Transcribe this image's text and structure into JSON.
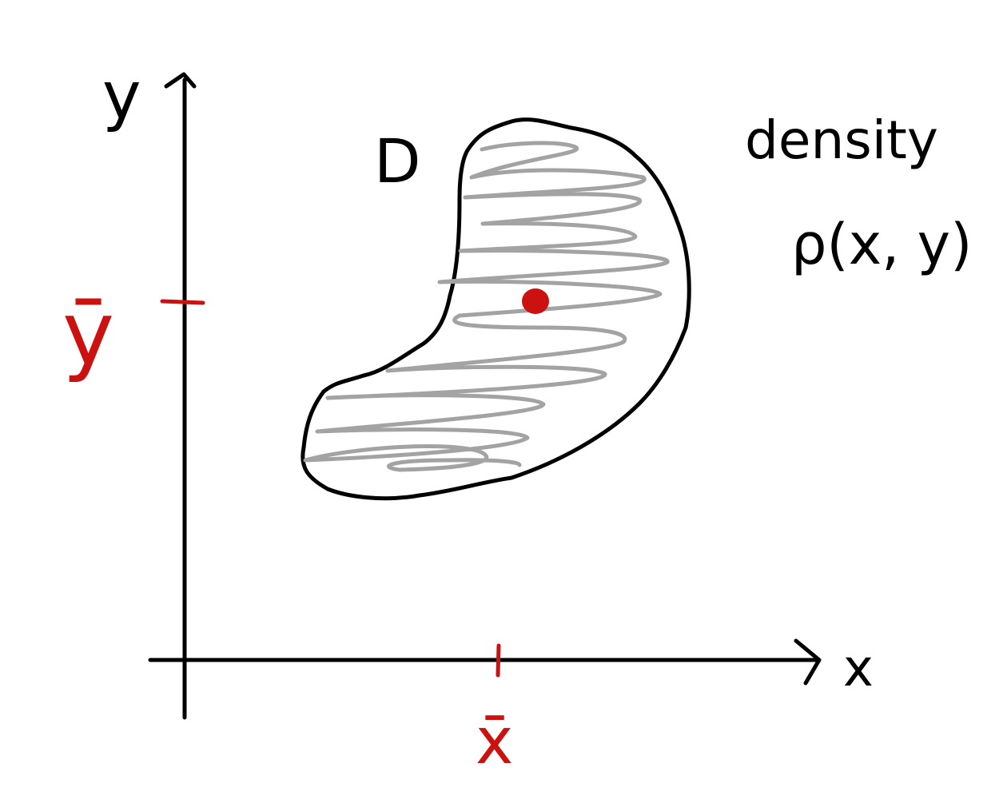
{
  "labels": {
    "y_axis": "y",
    "x_axis": "x",
    "region": "D",
    "density_word": "density",
    "density_func": "ρ(x, y)",
    "y_bar": "ȳ",
    "x_bar": "x̄"
  },
  "colors": {
    "ink": "#000000",
    "shading": "#a3a3a3",
    "highlight": "#cc1111"
  }
}
